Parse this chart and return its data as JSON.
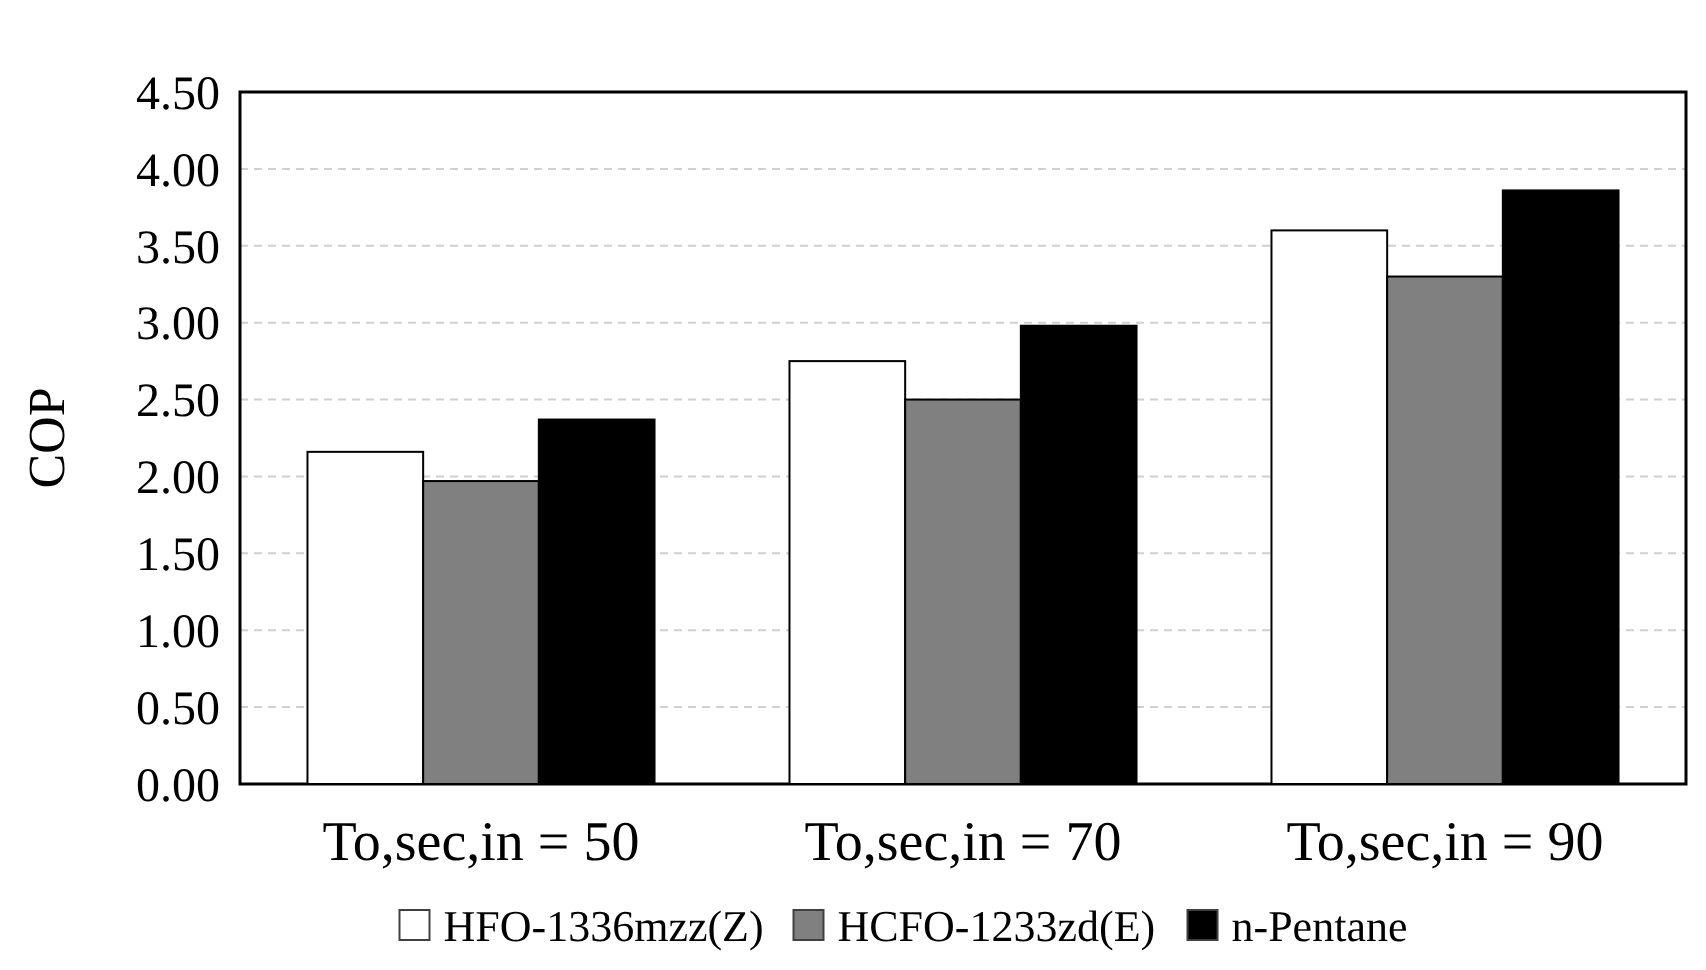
{
  "chart_data": {
    "type": "bar",
    "ylabel": "COP",
    "categories": [
      "To,sec,in = 50",
      "To,sec,in = 70",
      "To,sec,in = 90"
    ],
    "series": [
      {
        "name": "HFO-1336mzz(Z)",
        "color": "#ffffff",
        "values": [
          2.16,
          2.75,
          3.6
        ]
      },
      {
        "name": "HCFO-1233zd(E)",
        "color": "#808080",
        "values": [
          1.97,
          2.5,
          3.3
        ]
      },
      {
        "name": "n-Pentane",
        "color": "#000000",
        "values": [
          2.37,
          2.98,
          3.86
        ]
      }
    ],
    "ylim": [
      0,
      4.5
    ],
    "yticks": [
      {
        "value": 0,
        "label": "0.00"
      },
      {
        "value": 0.5,
        "label": "0.50"
      },
      {
        "value": 1,
        "label": "1.00"
      },
      {
        "value": 1.5,
        "label": "1.50"
      },
      {
        "value": 2,
        "label": "2.00"
      },
      {
        "value": 2.5,
        "label": "2.50"
      },
      {
        "value": 3,
        "label": "3.00"
      },
      {
        "value": 3.5,
        "label": "3.50"
      },
      {
        "value": 4,
        "label": "4.00"
      },
      {
        "value": 4.5,
        "label": "4.50"
      }
    ],
    "grid": "y",
    "legend": "bottom"
  }
}
